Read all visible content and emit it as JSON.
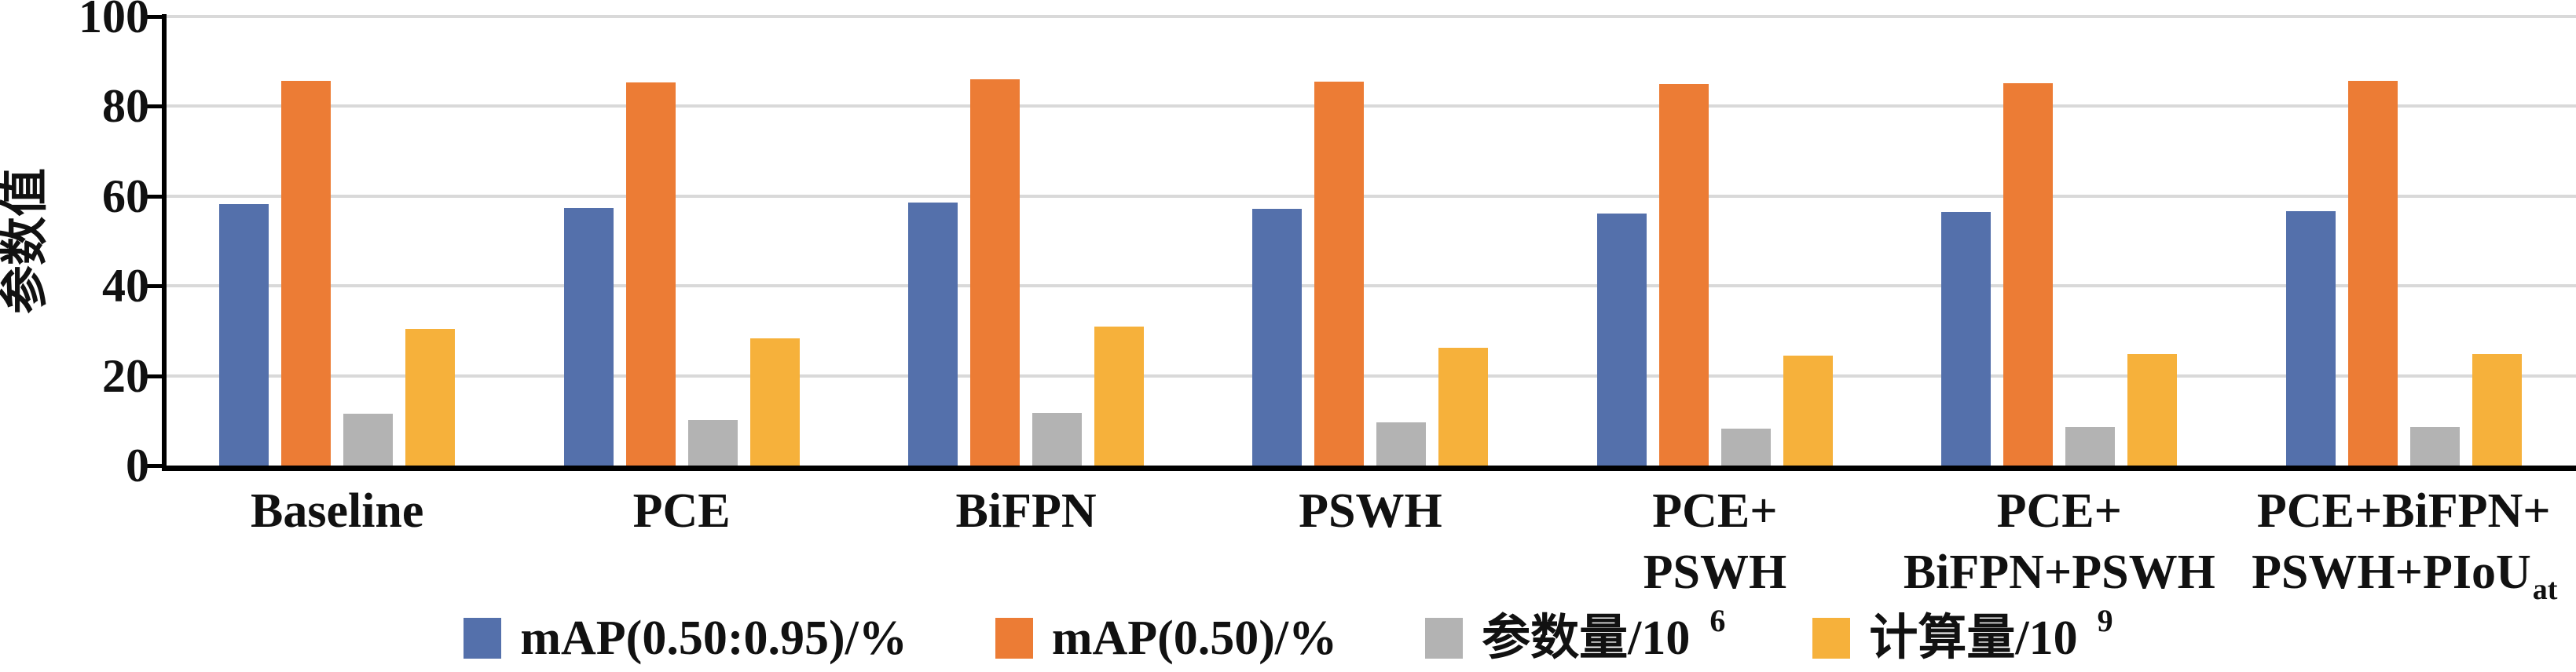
{
  "chart_data": {
    "type": "bar",
    "title": "",
    "xlabel": "",
    "ylabel": "参数值",
    "ylim": [
      0,
      100
    ],
    "yticks": [
      0,
      20,
      40,
      60,
      80,
      100
    ],
    "grid": true,
    "legend_position": "bottom",
    "axis_color": "#000000",
    "gridline_color": "#D9D9D9",
    "categories": [
      {
        "lines": [
          "Baseline"
        ],
        "sub": ""
      },
      {
        "lines": [
          "PCE"
        ],
        "sub": ""
      },
      {
        "lines": [
          "BiFPN"
        ],
        "sub": ""
      },
      {
        "lines": [
          "PSWH"
        ],
        "sub": ""
      },
      {
        "lines": [
          "PCE+",
          "PSWH"
        ],
        "sub": ""
      },
      {
        "lines": [
          "PCE+",
          "BiFPN+PSWH"
        ],
        "sub": ""
      },
      {
        "lines": [
          "PCE+BiFPN+",
          "PSWH+PIoU"
        ],
        "sub": "at"
      }
    ],
    "series": [
      {
        "key": "map-50-95",
        "name": "mAP(0.50:0.95)/%",
        "name_sup": "",
        "color": "#5470AB",
        "values": [
          58.2,
          57.4,
          58.5,
          57.2,
          56.2,
          56.5,
          56.6
        ]
      },
      {
        "key": "map-50",
        "name": "mAP(0.50)/%",
        "name_sup": "",
        "color": "#EC7C35",
        "values": [
          85.7,
          85.3,
          86.0,
          85.5,
          85.0,
          85.2,
          85.6
        ]
      },
      {
        "key": "params",
        "name": "参数量/10",
        "name_sup": "6",
        "color": "#B3B3B3",
        "values": [
          11.6,
          10.1,
          11.8,
          9.6,
          8.3,
          8.6,
          8.5
        ]
      },
      {
        "key": "gflops",
        "name": "计算量/10",
        "name_sup": "9",
        "color": "#F6B13B",
        "values": [
          30.4,
          28.3,
          30.9,
          26.3,
          24.4,
          24.9,
          24.8
        ]
      }
    ]
  }
}
